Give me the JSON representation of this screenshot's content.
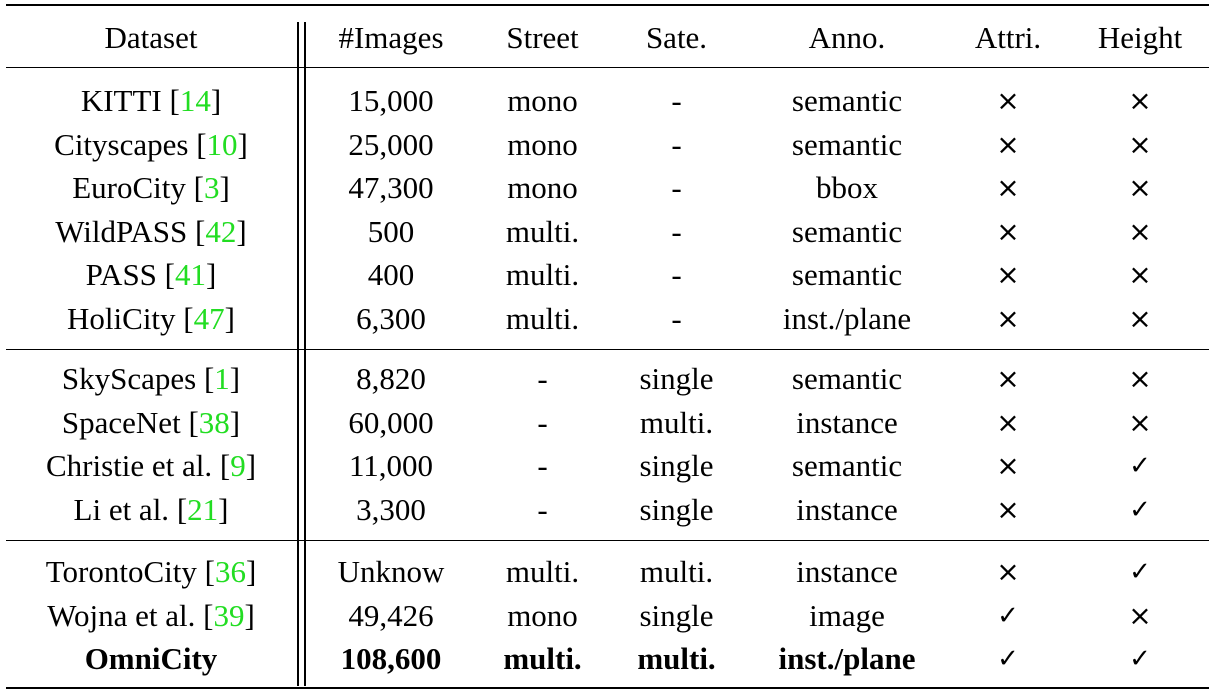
{
  "headers": [
    "Dataset",
    "#Images",
    "Street",
    "Sate.",
    "Anno.",
    "Attri.",
    "Height"
  ],
  "symbols": {
    "check": "✓",
    "cross": "×"
  },
  "colors": {
    "citation": "#22dd22",
    "text": "#000000"
  },
  "groups": [
    [
      {
        "name": "KITTI",
        "ref": "14",
        "images": "15,000",
        "street": "mono",
        "sate": "-",
        "anno": "semantic",
        "attri": "×",
        "height": "×"
      },
      {
        "name": "Cityscapes",
        "ref": "10",
        "images": "25,000",
        "street": "mono",
        "sate": "-",
        "anno": "semantic",
        "attri": "×",
        "height": "×"
      },
      {
        "name": "EuroCity",
        "ref": "3",
        "images": "47,300",
        "street": "mono",
        "sate": "-",
        "anno": "bbox",
        "attri": "×",
        "height": "×"
      },
      {
        "name": "WildPASS",
        "ref": "42",
        "images": "500",
        "street": "multi.",
        "sate": "-",
        "anno": "semantic",
        "attri": "×",
        "height": "×"
      },
      {
        "name": "PASS",
        "ref": "41",
        "images": "400",
        "street": "multi.",
        "sate": "-",
        "anno": "semantic",
        "attri": "×",
        "height": "×"
      },
      {
        "name": "HoliCity",
        "ref": "47",
        "images": "6,300",
        "street": "multi.",
        "sate": "-",
        "anno": "inst./plane",
        "attri": "×",
        "height": "×"
      }
    ],
    [
      {
        "name": "SkyScapes",
        "ref": "1",
        "images": "8,820",
        "street": "-",
        "sate": "single",
        "anno": "semantic",
        "attri": "×",
        "height": "×"
      },
      {
        "name": "SpaceNet",
        "ref": "38",
        "images": "60,000",
        "street": "-",
        "sate": "multi.",
        "anno": "instance",
        "attri": "×",
        "height": "×"
      },
      {
        "name": "Christie et al.",
        "ref": "9",
        "images": "11,000",
        "street": "-",
        "sate": "single",
        "anno": "semantic",
        "attri": "×",
        "height": "✓"
      },
      {
        "name": "Li et al.",
        "ref": "21",
        "images": "3,300",
        "street": "-",
        "sate": "single",
        "anno": "instance",
        "attri": "×",
        "height": "✓"
      }
    ],
    [
      {
        "name": "TorontoCity",
        "ref": "36",
        "images": "Unknow",
        "street": "multi.",
        "sate": "multi.",
        "anno": "instance",
        "attri": "×",
        "height": "✓"
      },
      {
        "name": "Wojna et al.",
        "ref": "39",
        "images": "49,426",
        "street": "mono",
        "sate": "single",
        "anno": "image",
        "attri": "✓",
        "height": "×"
      },
      {
        "name": "OmniCity",
        "ref": "",
        "images": "108,600",
        "street": "multi.",
        "sate": "multi.",
        "anno": "inst./plane",
        "attri": "✓",
        "height": "✓",
        "bold": true
      }
    ]
  ]
}
